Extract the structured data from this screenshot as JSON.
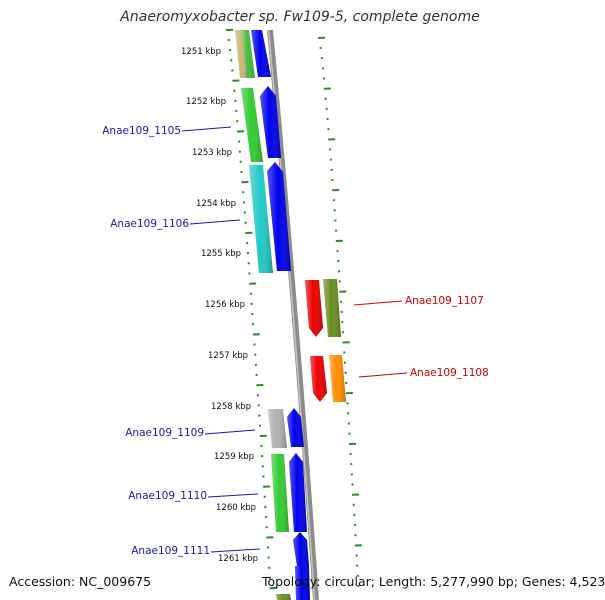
{
  "title": "Anaeromyxobacter sp. Fw109-5, complete genome",
  "footer": {
    "accession": "Accession: NC_009675",
    "topology": "Topology: circular; Length: 5,277,990 bp; Genes: 4,523"
  },
  "colors": {
    "tick": "#2b8a2b",
    "backbone": "#8c8c8c",
    "left_label": "#1a1aaa",
    "right_label": "#cc0000"
  },
  "kbp_labels": [
    "1251 kbp",
    "1252 kbp",
    "1253 kbp",
    "1254 kbp",
    "1255 kbp",
    "1256 kbp",
    "1257 kbp",
    "1258 kbp",
    "1259 kbp",
    "1260 kbp",
    "1261 kbp"
  ],
  "gene_labels": [
    {
      "id": "Anae109_1105",
      "side": "left"
    },
    {
      "id": "Anae109_1106",
      "side": "left"
    },
    {
      "id": "Anae109_1107",
      "side": "right"
    },
    {
      "id": "Anae109_1108",
      "side": "right"
    },
    {
      "id": "Anae109_1109",
      "side": "left"
    },
    {
      "id": "Anae109_1110",
      "side": "left"
    },
    {
      "id": "Anae109_1111",
      "side": "left"
    }
  ],
  "features": [
    {
      "name": "feature-cog-1",
      "color": "#c8b878"
    },
    {
      "name": "feature-cog-2",
      "color": "#44bb44"
    },
    {
      "name": "feature-cds-1",
      "color": "#0000ee"
    },
    {
      "name": "feature-cog-1105",
      "color": "#33cc33"
    },
    {
      "name": "feature-cds-1105",
      "color": "#0000ee"
    },
    {
      "name": "feature-cog-1106",
      "color": "#22c8c8"
    },
    {
      "name": "feature-cds-1106",
      "color": "#0000ee"
    },
    {
      "name": "feature-cds-1107",
      "color": "#ee0000"
    },
    {
      "name": "feature-cog-1107",
      "color": "#6b8e23"
    },
    {
      "name": "feature-cds-1108",
      "color": "#ee0000"
    },
    {
      "name": "feature-cog-1108",
      "color": "#ff8c00"
    },
    {
      "name": "feature-cog-1109",
      "color": "#b0b0b0"
    },
    {
      "name": "feature-cds-1109",
      "color": "#0000ee"
    },
    {
      "name": "feature-cog-1110",
      "color": "#33cc33"
    },
    {
      "name": "feature-cds-1110",
      "color": "#0000ee"
    },
    {
      "name": "feature-cds-1111",
      "color": "#0000ee"
    },
    {
      "name": "feature-cog-bottom",
      "color": "#6b8e23"
    },
    {
      "name": "feature-cds-bottom",
      "color": "#0000ee"
    }
  ]
}
